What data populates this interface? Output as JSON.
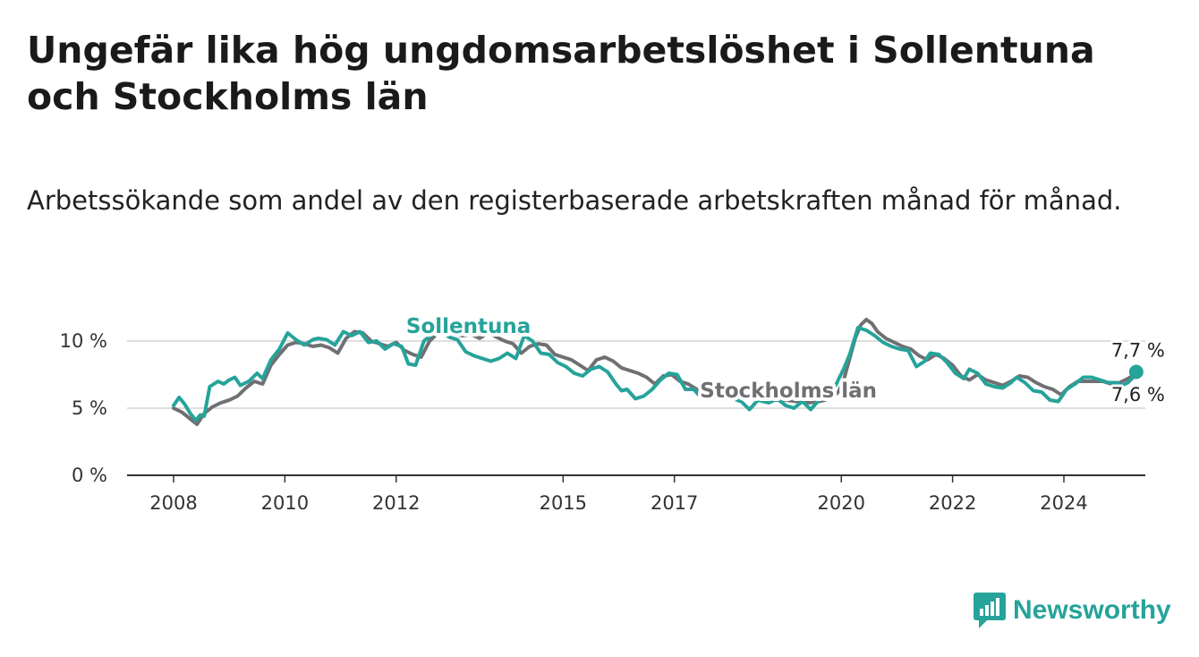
{
  "title": "Ungefär lika hög ungdomsarbetslöshet i Sollentuna och Stockholms län",
  "subtitle": "Arbetssökande som andel av den registerbaserade arbetskraften månad för månad.",
  "brand": {
    "name": "Newsworthy",
    "color": "#26a39a"
  },
  "chart_data": {
    "type": "line",
    "title": "",
    "xlabel": "",
    "ylabel": "",
    "ylim": [
      0,
      11.5
    ],
    "xlim": [
      2007.6,
      2025.75
    ],
    "y_ticks": [
      0,
      5,
      10
    ],
    "y_tick_labels": [
      "0 %",
      "5 %",
      "10 %"
    ],
    "x_ticks": [
      2008,
      2010,
      2012,
      2015,
      2017,
      2020,
      2022,
      2024
    ],
    "x_tick_labels": [
      "2008",
      "2010",
      "2012",
      "2015",
      "2017",
      "2020",
      "2022",
      "2024"
    ],
    "grid": true,
    "series": [
      {
        "name": "Stockholms län",
        "color": "#707074",
        "end_label": "7,6 %",
        "points": [
          [
            2008.0,
            5.0
          ],
          [
            2008.15,
            4.7
          ],
          [
            2008.3,
            4.2
          ],
          [
            2008.42,
            3.8
          ],
          [
            2008.55,
            4.6
          ],
          [
            2008.7,
            5.1
          ],
          [
            2008.85,
            5.4
          ],
          [
            2009.0,
            5.6
          ],
          [
            2009.15,
            5.9
          ],
          [
            2009.3,
            6.5
          ],
          [
            2009.45,
            7.0
          ],
          [
            2009.6,
            6.8
          ],
          [
            2009.75,
            8.2
          ],
          [
            2009.9,
            9.0
          ],
          [
            2010.05,
            9.7
          ],
          [
            2010.2,
            9.9
          ],
          [
            2010.35,
            9.8
          ],
          [
            2010.5,
            9.6
          ],
          [
            2010.65,
            9.7
          ],
          [
            2010.8,
            9.5
          ],
          [
            2010.95,
            9.1
          ],
          [
            2011.1,
            10.2
          ],
          [
            2011.25,
            10.7
          ],
          [
            2011.4,
            10.6
          ],
          [
            2011.55,
            10.0
          ],
          [
            2011.7,
            9.8
          ],
          [
            2011.85,
            9.6
          ],
          [
            2012.0,
            9.9
          ],
          [
            2012.15,
            9.3
          ],
          [
            2012.3,
            9.0
          ],
          [
            2012.45,
            8.8
          ],
          [
            2012.6,
            10.0
          ],
          [
            2012.75,
            10.6
          ],
          [
            2012.9,
            10.7
          ],
          [
            2013.05,
            10.5
          ],
          [
            2013.2,
            10.4
          ],
          [
            2013.35,
            10.5
          ],
          [
            2013.5,
            10.2
          ],
          [
            2013.65,
            10.6
          ],
          [
            2013.8,
            10.3
          ],
          [
            2013.95,
            10.0
          ],
          [
            2014.1,
            9.8
          ],
          [
            2014.25,
            9.1
          ],
          [
            2014.4,
            9.6
          ],
          [
            2014.55,
            9.8
          ],
          [
            2014.7,
            9.7
          ],
          [
            2014.85,
            9.0
          ],
          [
            2015.0,
            8.8
          ],
          [
            2015.15,
            8.6
          ],
          [
            2015.3,
            8.2
          ],
          [
            2015.45,
            7.8
          ],
          [
            2015.6,
            8.6
          ],
          [
            2015.75,
            8.8
          ],
          [
            2015.9,
            8.5
          ],
          [
            2016.05,
            8.0
          ],
          [
            2016.2,
            7.8
          ],
          [
            2016.35,
            7.6
          ],
          [
            2016.5,
            7.3
          ],
          [
            2016.65,
            6.8
          ],
          [
            2016.8,
            7.4
          ],
          [
            2016.95,
            7.5
          ],
          [
            2017.1,
            7.0
          ],
          [
            2017.25,
            6.8
          ],
          [
            2017.4,
            6.4
          ],
          [
            2017.55,
            6.5
          ],
          [
            2017.7,
            6.6
          ],
          [
            2017.85,
            6.4
          ],
          [
            2018.0,
            6.5
          ],
          [
            2018.2,
            6.1
          ],
          [
            2018.4,
            6.0
          ],
          [
            2018.6,
            5.8
          ],
          [
            2018.8,
            5.6
          ],
          [
            2019.0,
            5.6
          ],
          [
            2019.2,
            5.5
          ],
          [
            2019.4,
            5.4
          ],
          [
            2019.6,
            5.5
          ],
          [
            2019.8,
            5.7
          ],
          [
            2019.95,
            6.2
          ],
          [
            2020.05,
            7.2
          ],
          [
            2020.15,
            8.7
          ],
          [
            2020.25,
            10.2
          ],
          [
            2020.35,
            11.2
          ],
          [
            2020.45,
            11.6
          ],
          [
            2020.55,
            11.3
          ],
          [
            2020.65,
            10.7
          ],
          [
            2020.8,
            10.2
          ],
          [
            2020.95,
            9.9
          ],
          [
            2021.1,
            9.6
          ],
          [
            2021.25,
            9.4
          ],
          [
            2021.4,
            8.9
          ],
          [
            2021.55,
            8.6
          ],
          [
            2021.7,
            9.0
          ],
          [
            2021.85,
            8.7
          ],
          [
            2022.0,
            8.2
          ],
          [
            2022.15,
            7.4
          ],
          [
            2022.3,
            7.1
          ],
          [
            2022.45,
            7.5
          ],
          [
            2022.6,
            7.1
          ],
          [
            2022.75,
            6.9
          ],
          [
            2022.9,
            6.7
          ],
          [
            2023.05,
            7.0
          ],
          [
            2023.2,
            7.4
          ],
          [
            2023.35,
            7.3
          ],
          [
            2023.5,
            6.9
          ],
          [
            2023.65,
            6.6
          ],
          [
            2023.8,
            6.4
          ],
          [
            2023.95,
            6.0
          ],
          [
            2024.1,
            6.6
          ],
          [
            2024.25,
            7.0
          ],
          [
            2024.4,
            7.0
          ],
          [
            2024.55,
            7.0
          ],
          [
            2024.7,
            7.0
          ],
          [
            2024.85,
            6.8
          ],
          [
            2025.0,
            6.9
          ],
          [
            2025.15,
            7.2
          ],
          [
            2025.3,
            7.6
          ]
        ]
      },
      {
        "name": "Sollentuna",
        "color": "#26a39a",
        "end_label": "7,7 %",
        "points": [
          [
            2008.0,
            5.2
          ],
          [
            2008.1,
            5.8
          ],
          [
            2008.2,
            5.3
          ],
          [
            2008.3,
            4.6
          ],
          [
            2008.4,
            4.1
          ],
          [
            2008.48,
            4.5
          ],
          [
            2008.55,
            4.4
          ],
          [
            2008.65,
            6.6
          ],
          [
            2008.8,
            7.0
          ],
          [
            2008.9,
            6.8
          ],
          [
            2009.0,
            7.1
          ],
          [
            2009.1,
            7.3
          ],
          [
            2009.2,
            6.7
          ],
          [
            2009.35,
            7.0
          ],
          [
            2009.5,
            7.6
          ],
          [
            2009.6,
            7.2
          ],
          [
            2009.75,
            8.6
          ],
          [
            2009.9,
            9.4
          ],
          [
            2010.05,
            10.6
          ],
          [
            2010.2,
            10.1
          ],
          [
            2010.35,
            9.7
          ],
          [
            2010.5,
            10.1
          ],
          [
            2010.6,
            10.2
          ],
          [
            2010.75,
            10.1
          ],
          [
            2010.9,
            9.7
          ],
          [
            2011.05,
            10.7
          ],
          [
            2011.2,
            10.4
          ],
          [
            2011.35,
            10.7
          ],
          [
            2011.5,
            9.9
          ],
          [
            2011.65,
            10.0
          ],
          [
            2011.8,
            9.4
          ],
          [
            2011.95,
            9.8
          ],
          [
            2012.1,
            9.6
          ],
          [
            2012.22,
            8.3
          ],
          [
            2012.35,
            8.2
          ],
          [
            2012.5,
            10.0
          ],
          [
            2012.65,
            10.5
          ],
          [
            2012.8,
            10.8
          ],
          [
            2012.95,
            10.3
          ],
          [
            2013.1,
            10.1
          ],
          [
            2013.25,
            9.2
          ],
          [
            2013.4,
            8.9
          ],
          [
            2013.55,
            8.7
          ],
          [
            2013.7,
            8.5
          ],
          [
            2013.85,
            8.7
          ],
          [
            2014.0,
            9.1
          ],
          [
            2014.15,
            8.7
          ],
          [
            2014.3,
            10.4
          ],
          [
            2014.45,
            10.0
          ],
          [
            2014.6,
            9.1
          ],
          [
            2014.75,
            9.0
          ],
          [
            2014.9,
            8.4
          ],
          [
            2015.05,
            8.1
          ],
          [
            2015.2,
            7.6
          ],
          [
            2015.35,
            7.4
          ],
          [
            2015.5,
            7.9
          ],
          [
            2015.65,
            8.1
          ],
          [
            2015.8,
            7.7
          ],
          [
            2015.95,
            6.8
          ],
          [
            2016.05,
            6.3
          ],
          [
            2016.15,
            6.4
          ],
          [
            2016.3,
            5.7
          ],
          [
            2016.45,
            5.9
          ],
          [
            2016.6,
            6.4
          ],
          [
            2016.75,
            7.1
          ],
          [
            2016.9,
            7.6
          ],
          [
            2017.05,
            7.5
          ],
          [
            2017.2,
            6.4
          ],
          [
            2017.35,
            6.4
          ],
          [
            2017.5,
            5.7
          ],
          [
            2017.7,
            5.8
          ],
          [
            2017.9,
            6.0
          ],
          [
            2018.05,
            5.7
          ],
          [
            2018.2,
            5.5
          ],
          [
            2018.35,
            4.9
          ],
          [
            2018.5,
            5.6
          ],
          [
            2018.7,
            5.4
          ],
          [
            2018.85,
            5.7
          ],
          [
            2019.0,
            5.2
          ],
          [
            2019.15,
            5.0
          ],
          [
            2019.3,
            5.5
          ],
          [
            2019.45,
            4.9
          ],
          [
            2019.6,
            5.6
          ],
          [
            2019.75,
            6.3
          ],
          [
            2019.9,
            6.7
          ],
          [
            2020.05,
            8.0
          ],
          [
            2020.15,
            9.0
          ],
          [
            2020.3,
            11.0
          ],
          [
            2020.45,
            10.8
          ],
          [
            2020.6,
            10.4
          ],
          [
            2020.75,
            9.9
          ],
          [
            2020.9,
            9.6
          ],
          [
            2021.05,
            9.4
          ],
          [
            2021.2,
            9.3
          ],
          [
            2021.35,
            8.1
          ],
          [
            2021.5,
            8.5
          ],
          [
            2021.6,
            9.1
          ],
          [
            2021.75,
            9.0
          ],
          [
            2021.9,
            8.4
          ],
          [
            2022.05,
            7.6
          ],
          [
            2022.2,
            7.2
          ],
          [
            2022.3,
            7.9
          ],
          [
            2022.45,
            7.6
          ],
          [
            2022.6,
            6.8
          ],
          [
            2022.75,
            6.6
          ],
          [
            2022.9,
            6.5
          ],
          [
            2023.05,
            6.9
          ],
          [
            2023.15,
            7.3
          ],
          [
            2023.3,
            6.9
          ],
          [
            2023.45,
            6.3
          ],
          [
            2023.6,
            6.2
          ],
          [
            2023.75,
            5.6
          ],
          [
            2023.9,
            5.5
          ],
          [
            2024.05,
            6.4
          ],
          [
            2024.2,
            6.8
          ],
          [
            2024.35,
            7.3
          ],
          [
            2024.5,
            7.3
          ],
          [
            2024.65,
            7.1
          ],
          [
            2024.8,
            6.9
          ],
          [
            2024.95,
            6.9
          ],
          [
            2025.05,
            6.7
          ],
          [
            2025.15,
            6.9
          ],
          [
            2025.25,
            7.3
          ],
          [
            2025.3,
            7.7
          ]
        ]
      }
    ],
    "annotations": [
      {
        "text": "Sollentuna",
        "series": "Sollentuna",
        "x": 2013.3,
        "y": 10.6
      },
      {
        "text": "Stockholms län",
        "series": "Stockholms län",
        "x": 2019.05,
        "y": 5.8
      }
    ]
  }
}
